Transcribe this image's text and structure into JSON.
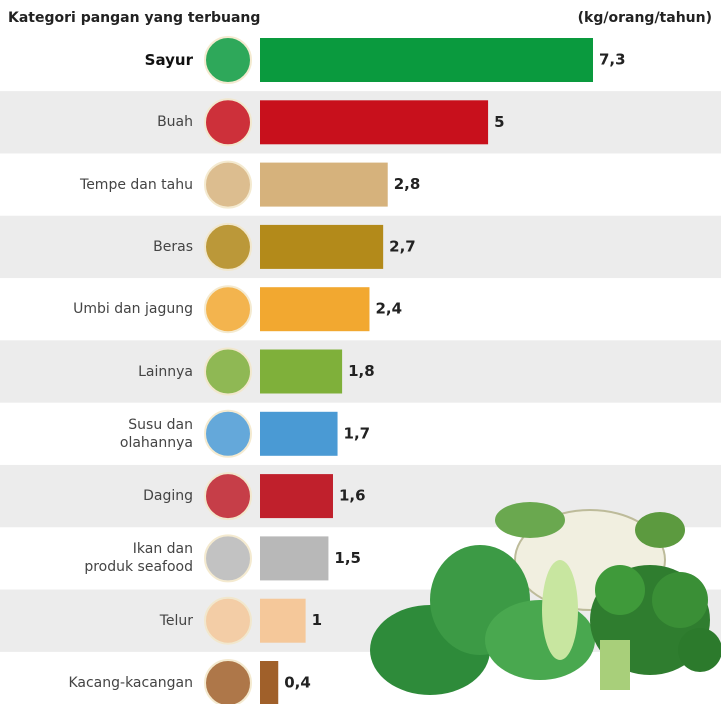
{
  "chart_data": {
    "type": "bar",
    "orientation": "horizontal",
    "title": "Kategori pangan yang terbuang",
    "unit": "(kg/orang/tahun)",
    "categories": [
      "Sayur",
      "Buah",
      "Tempe dan tahu",
      "Beras",
      "Umbi dan jagung",
      "Lainnya",
      "Susu dan\nolahannya",
      "Daging",
      "Ikan dan\nproduk seafood",
      "Telur",
      "Kacang-kacangan"
    ],
    "values": [
      7.3,
      5,
      2.8,
      2.7,
      2.4,
      1.8,
      1.7,
      1.6,
      1.5,
      1,
      0.4
    ],
    "value_labels": [
      "7,3",
      "5",
      "2,8",
      "2,7",
      "2,4",
      "1,8",
      "1,7",
      "1,6",
      "1,5",
      "1",
      "0,4"
    ],
    "colors": [
      "#0a9a3e",
      "#c8101c",
      "#d6b27c",
      "#b38a1a",
      "#f2a830",
      "#7fb03a",
      "#4a9ad4",
      "#c0202c",
      "#b8b8b8",
      "#f5c89a",
      "#a0602a"
    ]
  }
}
